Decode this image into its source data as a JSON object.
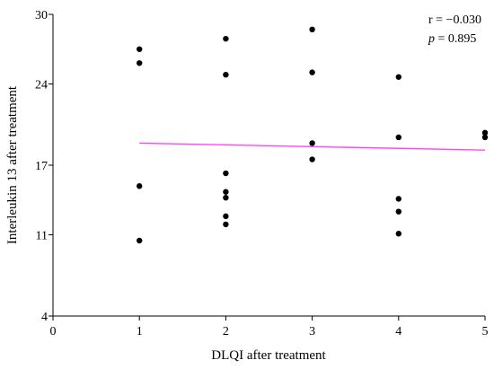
{
  "chart_data": {
    "type": "scatter",
    "title": "",
    "xlabel": "DLQI after treatment",
    "ylabel": "Interleukin 13 after treatment",
    "xlim": [
      0,
      5
    ],
    "ylim": [
      4,
      30
    ],
    "x_ticks": [
      0,
      1,
      2,
      3,
      4,
      5
    ],
    "y_ticks": [
      4,
      11,
      17,
      24,
      30
    ],
    "grid": false,
    "legend": "none",
    "point_color": "#000000",
    "trendline_color": "#ff44ff",
    "points": [
      {
        "x": 1,
        "y": 27.0
      },
      {
        "x": 1,
        "y": 25.8
      },
      {
        "x": 1,
        "y": 15.2
      },
      {
        "x": 1,
        "y": 10.5
      },
      {
        "x": 2,
        "y": 27.9
      },
      {
        "x": 2,
        "y": 24.8
      },
      {
        "x": 2,
        "y": 16.3
      },
      {
        "x": 2,
        "y": 14.7
      },
      {
        "x": 2,
        "y": 14.2
      },
      {
        "x": 2,
        "y": 12.6
      },
      {
        "x": 2,
        "y": 11.9
      },
      {
        "x": 3,
        "y": 28.7
      },
      {
        "x": 3,
        "y": 25.0
      },
      {
        "x": 3,
        "y": 18.9
      },
      {
        "x": 3,
        "y": 17.5
      },
      {
        "x": 4,
        "y": 24.6
      },
      {
        "x": 4,
        "y": 19.4
      },
      {
        "x": 4,
        "y": 14.1
      },
      {
        "x": 4,
        "y": 13.0
      },
      {
        "x": 4,
        "y": 11.1
      },
      {
        "x": 5,
        "y": 19.8
      },
      {
        "x": 5,
        "y": 19.4
      }
    ],
    "trendline": {
      "x": [
        1,
        5
      ],
      "y": [
        18.9,
        18.3
      ]
    },
    "annotations": {
      "r_text": "r = −0.030",
      "p_symbol": "p",
      "p_value": " = 0.895"
    }
  }
}
